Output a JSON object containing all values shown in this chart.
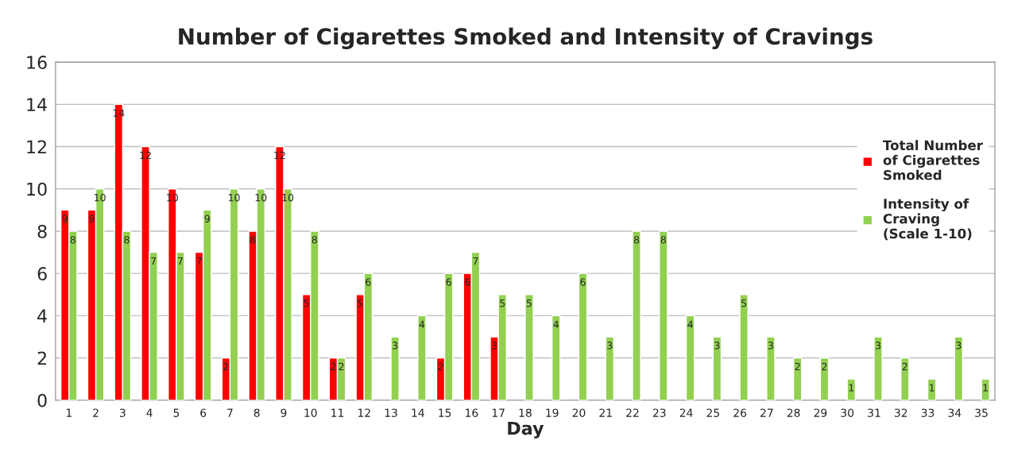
{
  "chart_data": {
    "type": "bar",
    "title": "Number of Cigarettes Smoked and Intensity of Cravings",
    "xlabel": "Day",
    "categories": [
      "1",
      "2",
      "3",
      "4",
      "5",
      "6",
      "7",
      "8",
      "9",
      "10",
      "11",
      "12",
      "13",
      "14",
      "15",
      "16",
      "17",
      "18",
      "19",
      "20",
      "21",
      "22",
      "23",
      "24",
      "25",
      "26",
      "27",
      "28",
      "29",
      "30",
      "31",
      "32",
      "33",
      "34",
      "35"
    ],
    "series": [
      {
        "name": "Total Number\nof Cigarettes\nSmoked",
        "color": "#ff0000",
        "values": [
          9,
          9,
          14,
          12,
          10,
          7,
          2,
          8,
          12,
          5,
          2,
          5,
          null,
          null,
          2,
          6,
          3,
          null,
          null,
          null,
          null,
          null,
          null,
          null,
          null,
          null,
          null,
          null,
          null,
          null,
          null,
          null,
          null,
          null,
          null
        ]
      },
      {
        "name": "Intensity of\nCraving\n(Scale 1-10)",
        "color": "#92d050",
        "values": [
          8,
          10,
          8,
          7,
          7,
          9,
          10,
          10,
          10,
          8,
          2,
          6,
          3,
          4,
          6,
          7,
          5,
          5,
          4,
          6,
          3,
          8,
          8,
          4,
          3,
          5,
          3,
          2,
          2,
          1,
          3,
          2,
          1,
          3,
          1
        ]
      }
    ],
    "ylim": [
      0,
      16
    ],
    "yticks": [
      0,
      2,
      4,
      6,
      8,
      10,
      12,
      14,
      16
    ],
    "grid": "y",
    "legend": "right",
    "data_labels": true
  }
}
